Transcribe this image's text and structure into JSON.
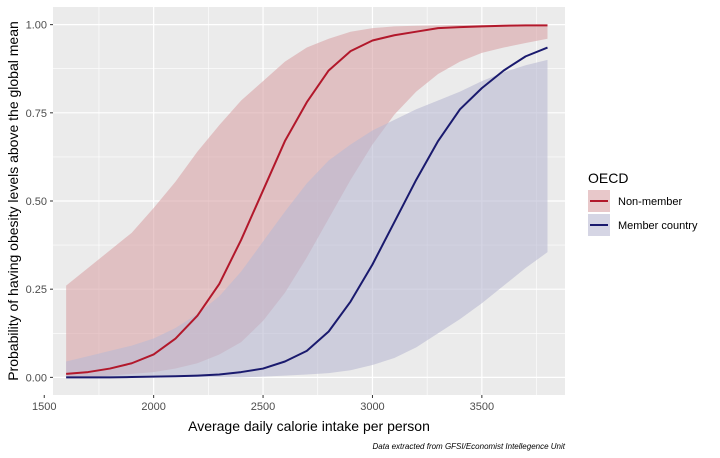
{
  "chart_data": {
    "type": "line",
    "title": "",
    "xlabel": "Average daily calorie intake per person",
    "ylabel": "Probability of having obesity levels above the global mean",
    "caption": "Data extracted from GFSI/Economist Intellegence Unit",
    "xlim": [
      1540,
      3880
    ],
    "ylim": [
      -0.05,
      1.05
    ],
    "x_ticks": [
      1500,
      2000,
      2500,
      3000,
      3500
    ],
    "y_ticks": [
      0.0,
      0.25,
      0.5,
      0.75,
      1.0
    ],
    "y_tick_labels": [
      "0.00",
      "0.25",
      "0.50",
      "0.75",
      "1.00"
    ],
    "grid": true,
    "legend": {
      "title": "OECD",
      "placement": "right"
    },
    "x": [
      1600,
      1700,
      1800,
      1900,
      2000,
      2100,
      2200,
      2300,
      2400,
      2500,
      2600,
      2700,
      2800,
      2900,
      3000,
      3100,
      3200,
      3300,
      3400,
      3500,
      3600,
      3700,
      3800
    ],
    "series": [
      {
        "name": "Non-member",
        "color": "#b2182b",
        "fill": "#d9a3a6",
        "values": [
          0.01,
          0.015,
          0.025,
          0.04,
          0.065,
          0.11,
          0.175,
          0.265,
          0.39,
          0.53,
          0.67,
          0.78,
          0.87,
          0.925,
          0.955,
          0.97,
          0.98,
          0.99,
          0.993,
          0.995,
          0.997,
          0.998,
          0.998
        ],
        "lower": [
          0.0,
          0.0,
          0.005,
          0.01,
          0.015,
          0.025,
          0.04,
          0.065,
          0.1,
          0.16,
          0.24,
          0.34,
          0.45,
          0.56,
          0.66,
          0.745,
          0.81,
          0.86,
          0.895,
          0.92,
          0.935,
          0.948,
          0.96
        ],
        "upper": [
          0.26,
          0.31,
          0.36,
          0.41,
          0.48,
          0.555,
          0.64,
          0.715,
          0.785,
          0.84,
          0.895,
          0.935,
          0.96,
          0.98,
          0.99,
          0.995,
          0.997,
          0.998,
          0.999,
          0.999,
          1.0,
          1.0,
          1.0
        ]
      },
      {
        "name": "Member country",
        "color": "#1a1a6e",
        "fill": "#b9b9d2",
        "values": [
          0.0,
          0.0,
          0.0,
          0.001,
          0.002,
          0.003,
          0.005,
          0.008,
          0.015,
          0.025,
          0.045,
          0.075,
          0.13,
          0.215,
          0.32,
          0.44,
          0.56,
          0.67,
          0.76,
          0.82,
          0.87,
          0.91,
          0.935
        ],
        "lower": [
          0.0,
          0.0,
          0.0,
          0.0,
          0.0,
          0.0,
          0.0,
          0.0,
          0.0,
          0.002,
          0.005,
          0.008,
          0.012,
          0.02,
          0.035,
          0.055,
          0.085,
          0.125,
          0.165,
          0.21,
          0.26,
          0.31,
          0.355
        ],
        "upper": [
          0.045,
          0.06,
          0.075,
          0.09,
          0.11,
          0.14,
          0.18,
          0.23,
          0.3,
          0.385,
          0.47,
          0.55,
          0.615,
          0.66,
          0.7,
          0.73,
          0.76,
          0.785,
          0.81,
          0.84,
          0.865,
          0.885,
          0.9
        ]
      }
    ]
  }
}
